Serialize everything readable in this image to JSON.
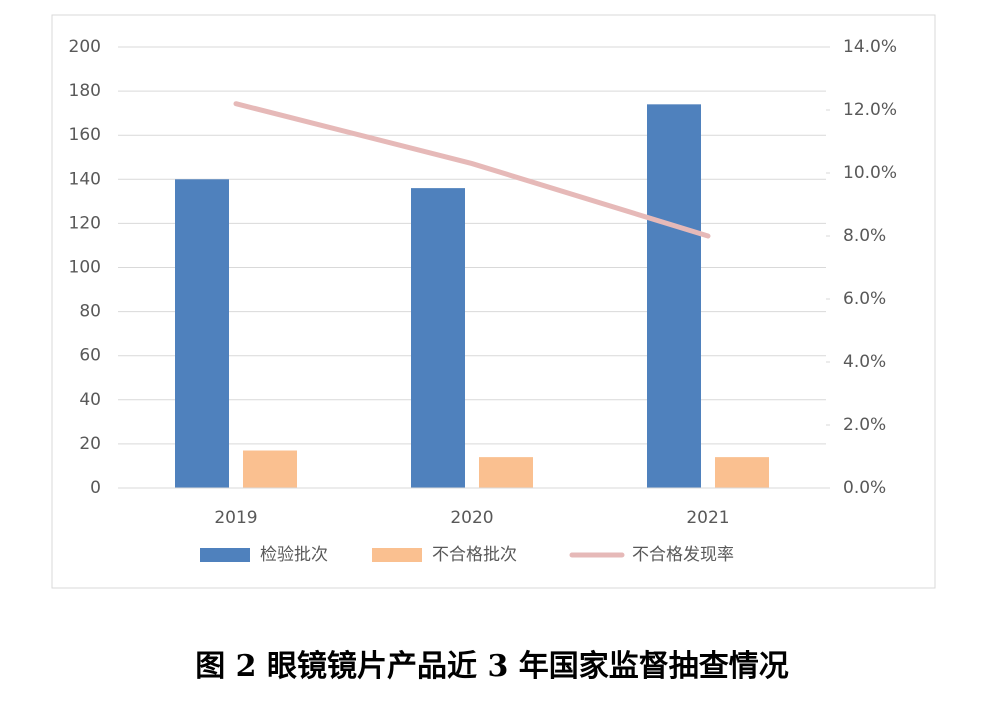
{
  "chart_data": {
    "type": "bar-line",
    "caption": "图 2  眼镜镜片产品近 3 年国家监督抽查情况",
    "categories": [
      "2019",
      "2020",
      "2021"
    ],
    "series": [
      {
        "name": "检验批次",
        "color": "#4f81bd",
        "type": "bar",
        "values": [
          140,
          136,
          174
        ]
      },
      {
        "name": "不合格批次",
        "color": "#fac090",
        "type": "bar",
        "values": [
          17,
          14,
          14
        ]
      },
      {
        "name": "不合格发现率",
        "color": "#e6b9b8",
        "type": "line",
        "axis": "y2",
        "values": [
          12.2,
          10.3,
          8.0
        ]
      }
    ],
    "ylim": [
      0,
      200
    ],
    "yticks": [
      0,
      20,
      40,
      60,
      80,
      100,
      120,
      140,
      160,
      180,
      200
    ],
    "y2lim": [
      0,
      14
    ],
    "y2ticks": [
      {
        "value": 0,
        "label": "0.0%"
      },
      {
        "value": 2,
        "label": "2.0%"
      },
      {
        "value": 4,
        "label": "4.0%"
      },
      {
        "value": 6,
        "label": "6.0%"
      },
      {
        "value": 8,
        "label": "8.0%"
      },
      {
        "value": 10,
        "label": "10.0%"
      },
      {
        "value": 12,
        "label": "12.0%"
      },
      {
        "value": 14,
        "label": "14.0%"
      }
    ],
    "grid": true,
    "legend": "bottom"
  }
}
